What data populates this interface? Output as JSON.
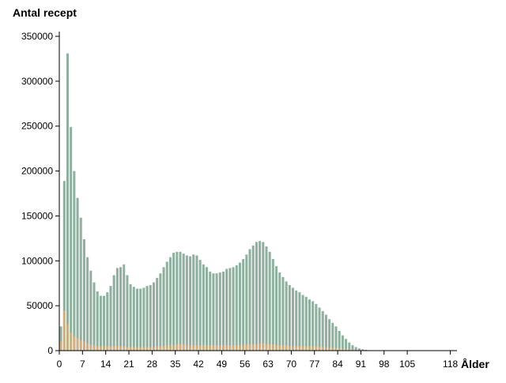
{
  "chart_data": {
    "type": "bar",
    "ylabel": "Antal recept",
    "xlabel": "Ålder",
    "ylim": [
      0,
      350000
    ],
    "xlim": [
      0,
      120
    ],
    "y_ticks": [
      0,
      50000,
      100000,
      150000,
      200000,
      250000,
      300000,
      350000
    ],
    "x_ticks": [
      0,
      7,
      14,
      21,
      28,
      35,
      42,
      49,
      56,
      63,
      70,
      77,
      84,
      91,
      98,
      105,
      118
    ],
    "grid": false,
    "series": [
      {
        "color": "#8fb09f",
        "values": [
          27000,
          189000,
          331000,
          249000,
          200000,
          170000,
          148000,
          124000,
          104000,
          89000,
          76000,
          66000,
          61000,
          61000,
          65000,
          72000,
          84000,
          92000,
          93000,
          96000,
          84000,
          74000,
          71000,
          69000,
          69000,
          70000,
          72000,
          73000,
          76000,
          81000,
          86000,
          93000,
          99000,
          104000,
          109000,
          110000,
          110000,
          108000,
          106000,
          105000,
          107000,
          106000,
          101000,
          96000,
          93000,
          88000,
          86000,
          86000,
          87000,
          88000,
          91000,
          92000,
          93000,
          95000,
          98000,
          102000,
          107000,
          113000,
          117000,
          121000,
          122000,
          121000,
          116000,
          110000,
          102000,
          94000,
          87000,
          82000,
          77000,
          73000,
          70000,
          67000,
          65000,
          62000,
          60000,
          57000,
          55000,
          52000,
          48000,
          44000,
          40000,
          35000,
          31000,
          27000,
          22000,
          17000,
          13000,
          9000,
          6000,
          4000,
          2500,
          1500,
          900,
          500,
          300,
          200,
          100,
          80,
          50,
          30,
          20,
          10,
          10,
          5,
          5,
          5,
          0,
          0,
          0,
          0,
          0,
          0,
          0,
          0,
          0,
          0,
          0,
          0,
          0,
          0
        ]
      },
      {
        "color": "#e0ac74",
        "values": [
          10000,
          45000,
          30000,
          20000,
          16000,
          14000,
          12000,
          10000,
          8000,
          7000,
          6000,
          5000,
          5000,
          5000,
          5000,
          5000,
          5000,
          5000,
          5000,
          5000,
          4000,
          4000,
          4000,
          4000,
          4000,
          4000,
          4000,
          4000,
          4000,
          5000,
          5000,
          5000,
          6000,
          6000,
          6000,
          7000,
          7000,
          7000,
          6000,
          6000,
          6000,
          6000,
          6000,
          6000,
          6000,
          6000,
          6000,
          6000,
          6000,
          6000,
          6000,
          6000,
          6000,
          6000,
          6000,
          6000,
          7000,
          7000,
          7000,
          7000,
          8000,
          8000,
          7000,
          7000,
          7000,
          6000,
          6000,
          6000,
          6000,
          5000,
          5000,
          5000,
          5000,
          5000,
          5000,
          5000,
          5000,
          5000,
          4000,
          4000,
          4000,
          3000,
          3000,
          3000,
          2000,
          2000,
          2000,
          1000,
          1000,
          800,
          500,
          300,
          200,
          100,
          50,
          30,
          20,
          10,
          5,
          5,
          0,
          0,
          0,
          0,
          0,
          0,
          0,
          0,
          0,
          0,
          0,
          0,
          0,
          0,
          0,
          0,
          0,
          0,
          0,
          0
        ]
      }
    ]
  }
}
